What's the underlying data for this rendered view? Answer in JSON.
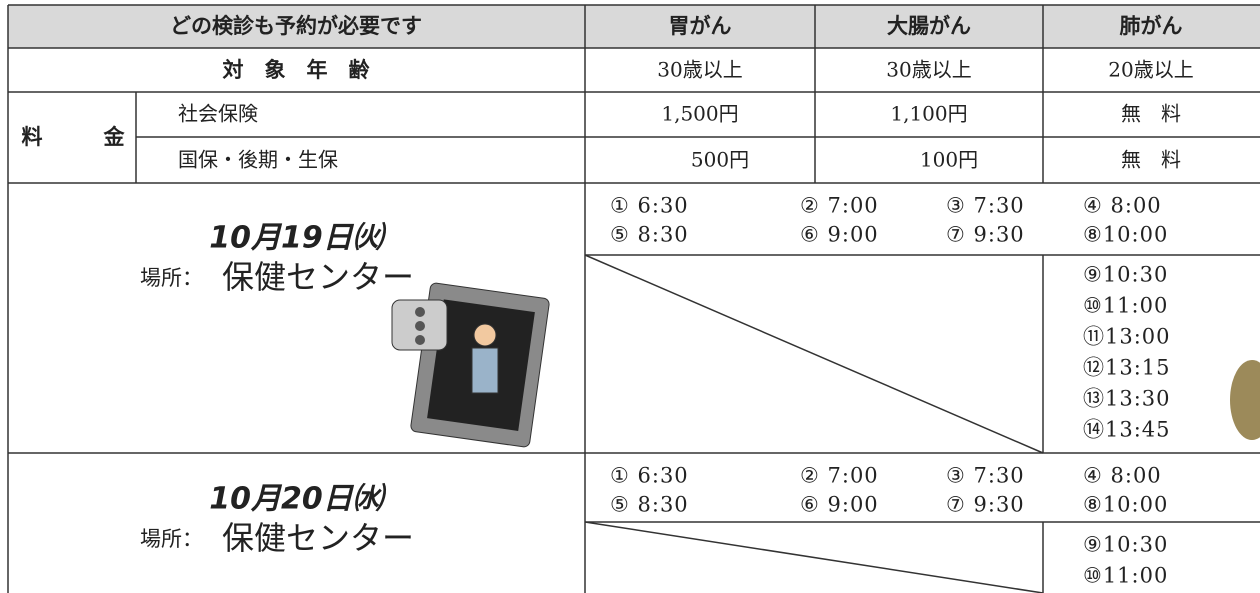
{
  "header": {
    "columns": [
      "どの検診も予約が必要です",
      "胃がん",
      "大腸がん",
      "肺がん"
    ]
  },
  "age": {
    "label": "対　象　年　齢",
    "values": [
      "30歳以上",
      "30歳以上",
      "20歳以上"
    ]
  },
  "fee": {
    "label": [
      "料",
      "金"
    ],
    "rows": [
      {
        "label": "社会保険",
        "values": [
          "1,500円",
          "1,100円",
          "無　料"
        ]
      },
      {
        "label": "国保・後期・生保",
        "values": [
          "500円",
          "100円",
          "無　料"
        ]
      }
    ]
  },
  "sessions": [
    {
      "date": "10月19日㈫",
      "place_label": "場所：",
      "place": "保健センター",
      "times": [
        "① 6:30",
        "② 7:00",
        "③ 7:30",
        "④ 8:00",
        "⑤ 8:30",
        "⑥ 9:00",
        "⑦ 9:30",
        "⑧10:00",
        "⑨10:30",
        "⑩11:00",
        "⑪13:00",
        "⑫13:15",
        "⑬13:30",
        "⑭13:45"
      ]
    },
    {
      "date": "10月20日㈬",
      "place_label": "場所：",
      "place": "保健センター",
      "times": [
        "① 6:30",
        "② 7:00",
        "③ 7:30",
        "④ 8:00",
        "⑤ 8:30",
        "⑥ 9:00",
        "⑦ 9:30",
        "⑧10:00",
        "⑨10:30",
        "⑩11:00"
      ]
    }
  ]
}
